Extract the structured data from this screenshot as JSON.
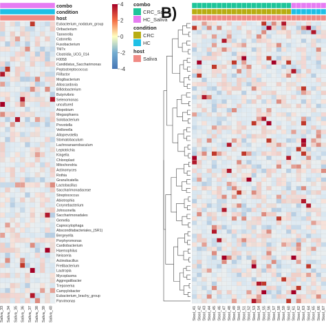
{
  "panel_b_label": "B)",
  "chart_data": [
    {
      "type": "heatmap",
      "panel": "A",
      "annotation_tracks": [
        {
          "name": "combo"
        },
        {
          "name": "condition"
        },
        {
          "name": "host"
        }
      ],
      "row_labels": [
        "Eubacterium_nodatum_group",
        "Oribacterium",
        "Tannerella",
        "Catonella",
        "Fusobacterium",
        "TM7x",
        "Clostridia_UCG_014",
        "F0058",
        "Candidatus_Saccharimonas",
        "Peptostreptococcus",
        "Filifactor",
        "Mogibacterium",
        "Alloscardovia",
        "Bifidobacterium",
        "Butyrivibrio",
        "Selenomonas",
        "uncultured",
        "Atopobium",
        "Megasphaera",
        "Solobacterium",
        "Prevotella",
        "Veillonella",
        "Alloprevotella",
        "Stomatobaculum",
        "Lachnoanaerobaculum",
        "Leptotrichia",
        "Kingella",
        "Chloroplast",
        "Mitochondria",
        "Actinomyces",
        "Rothia",
        "Granulicatella",
        "Lactobacillus",
        "Saccharimonadaceae",
        "Streptococcus",
        "Abiotrophia",
        "Corynebacterium",
        "Johnsonella",
        "Saccharimonadales",
        "Gemella",
        "Capnocytophaga",
        "Absconditabacteriales_(SR1)",
        "Bergeyella",
        "Porphyromonas",
        "Cardiobacterium",
        "Haemophilus",
        "Neisseria",
        "Actinobacillus",
        "Fretibacterium",
        "Lautropia",
        "Mycoplasma",
        "Aggregatibacter",
        "Treponema",
        "Campylobacter",
        "Eubacterium_brachy_group",
        "Parvimonas"
      ],
      "column_labels": [
        "Saliva_33",
        "Saliva_34",
        "Saliva_35",
        "Saliva_36",
        "Saliva_37",
        "Saliva_38",
        "Saliva_39",
        "Saliva_40"
      ],
      "color_scale": {
        "min": -4,
        "max": 4,
        "ticks": [
          4,
          2,
          0,
          -2,
          -4
        ],
        "low": "#4575b4",
        "mid": "#ffffbf",
        "high": "#a50026"
      },
      "legend": {
        "placement": "right",
        "groups": [
          {
            "title": "combo",
            "items": [
              {
                "label": "CRC_Saliva",
                "color": "#1ec59a"
              },
              {
                "label": "HC_Saliva",
                "color": "#e77cf3"
              }
            ]
          },
          {
            "title": "condition",
            "items": [
              {
                "label": "CRC",
                "color": "#b8ad13"
              },
              {
                "label": "HC",
                "color": "#1fc0e6"
              }
            ]
          },
          {
            "title": "host",
            "items": [
              {
                "label": "Saliva",
                "color": "#f08a84"
              }
            ]
          }
        ]
      }
    },
    {
      "type": "heatmap",
      "panel": "B",
      "rows": 65,
      "column_labels": [
        "Stool_41",
        "Stool_42",
        "Stool_43",
        "Stool_44",
        "Stool_45",
        "Stool_46",
        "Stool_47",
        "Stool_48",
        "Stool_49",
        "Stool_50",
        "Stool_51",
        "Stool_52",
        "Stool_53",
        "Stool_54",
        "Stool_55",
        "Stool_56",
        "Stool_57",
        "Stool_58",
        "Stool_59",
        "Stool_60",
        "Stool_61",
        "Stool_62",
        "Stool_63",
        "Stool_64",
        "Stool_65",
        "Stool_66",
        "Stool_67"
      ],
      "annotation_colors": {
        "combo": [
          "#1ec59a",
          "#e77cf3"
        ],
        "condition": [
          "#b8ad13",
          "#1fc0e6"
        ],
        "host": "#f08a84"
      }
    }
  ]
}
